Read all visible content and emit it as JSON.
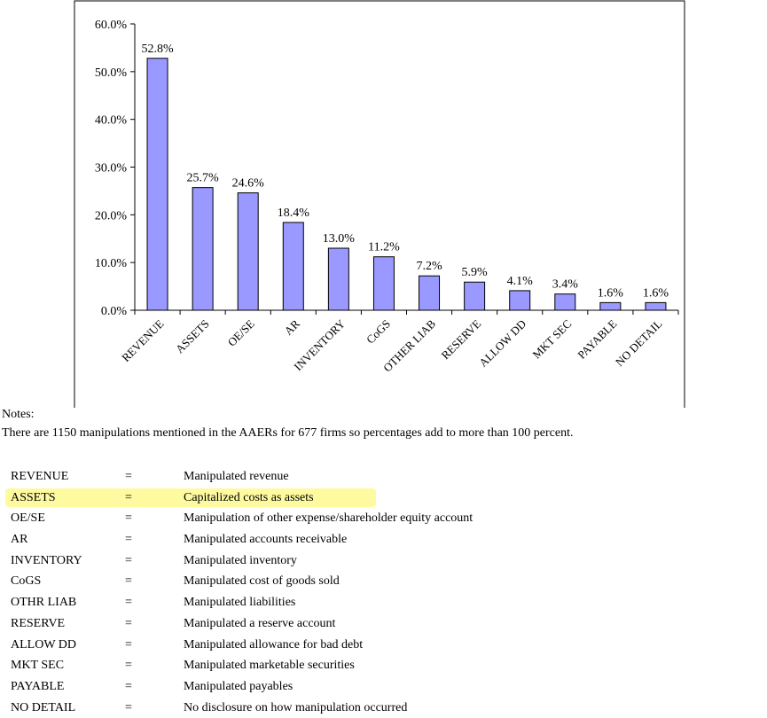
{
  "chart_data": {
    "type": "bar",
    "categories": [
      "REVENUE",
      "ASSETS",
      "OE/SE",
      "AR",
      "INVENTORY",
      "CoGS",
      "OTHER LIAB",
      "RESERVE",
      "ALLOW DD",
      "MKT SEC",
      "PAYABLE",
      "NO DETAIL"
    ],
    "values": [
      52.8,
      25.7,
      24.6,
      18.4,
      13.0,
      11.2,
      7.2,
      5.9,
      4.1,
      3.4,
      1.6,
      1.6
    ],
    "data_labels": [
      "52.8%",
      "25.7%",
      "24.6%",
      "18.4%",
      "13.0%",
      "11.2%",
      "7.2%",
      "5.9%",
      "4.1%",
      "3.4%",
      "1.6%",
      "1.6%"
    ],
    "yticks": [
      "0.0%",
      "10.0%",
      "20.0%",
      "30.0%",
      "40.0%",
      "50.0%",
      "60.0%"
    ],
    "ylim": [
      0,
      60
    ],
    "title": "",
    "xlabel": "",
    "ylabel": "",
    "grid": false,
    "legend": "none",
    "bar_color": "#9999ff"
  },
  "notes": {
    "heading": "Notes:",
    "text": "There are 1150 manipulations mentioned in the AAERs for 677 firms so percentages add to more than 100 percent."
  },
  "legend": {
    "highlight_color": "#fdfaa0",
    "items": [
      {
        "code": "REVENUE",
        "eq": "=",
        "desc": "Manipulated revenue",
        "highlighted": false
      },
      {
        "code": "ASSETS",
        "eq": "=",
        "desc": "Capitalized costs as assets",
        "highlighted": true
      },
      {
        "code": "OE/SE",
        "eq": "=",
        "desc": "Manipulation of other expense/shareholder equity account",
        "highlighted": false
      },
      {
        "code": "AR",
        "eq": "=",
        "desc": "Manipulated accounts receivable",
        "highlighted": false
      },
      {
        "code": "INVENTORY",
        "eq": "=",
        "desc": "Manipulated inventory",
        "highlighted": false
      },
      {
        "code": "CoGS",
        "eq": "=",
        "desc": "Manipulated cost of goods sold",
        "highlighted": false
      },
      {
        "code": "OTHR LIAB",
        "eq": "=",
        "desc": "Manipulated liabilities",
        "highlighted": false
      },
      {
        "code": "RESERVE",
        "eq": "=",
        "desc": "Manipulated a reserve account",
        "highlighted": false
      },
      {
        "code": "ALLOW DD",
        "eq": "=",
        "desc": "Manipulated allowance for bad debt",
        "highlighted": false
      },
      {
        "code": "MKT SEC",
        "eq": "=",
        "desc": "Manipulated marketable securities",
        "highlighted": false
      },
      {
        "code": "PAYABLE",
        "eq": "=",
        "desc": "Manipulated payables",
        "highlighted": false
      },
      {
        "code": "NO DETAIL",
        "eq": "=",
        "desc": "No disclosure on how manipulation occurred",
        "highlighted": false
      }
    ]
  }
}
